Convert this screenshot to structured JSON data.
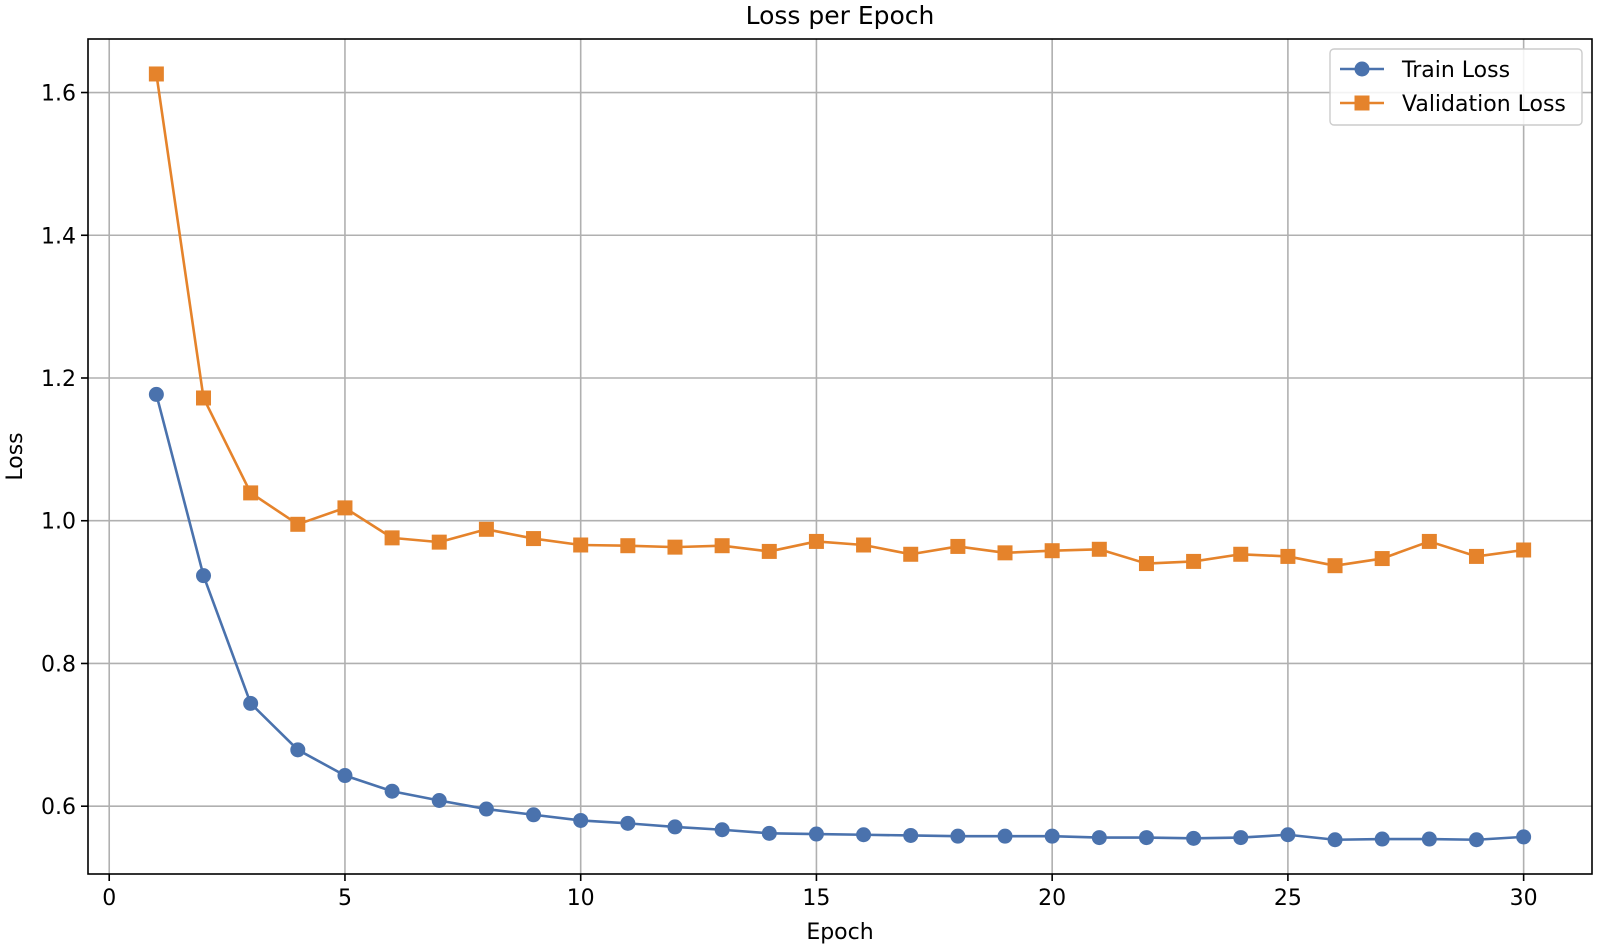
{
  "chart_data": {
    "type": "line",
    "title": "Loss per Epoch",
    "xlabel": "Epoch",
    "ylabel": "Loss",
    "xlim": [
      -0.45,
      31.45
    ],
    "ylim": [
      0.505,
      1.675
    ],
    "xticks": [
      0,
      5,
      10,
      15,
      20,
      25,
      30
    ],
    "yticks": [
      0.6,
      0.8,
      1.0,
      1.2,
      1.4,
      1.6
    ],
    "ytick_labels": [
      "0.6",
      "0.8",
      "1.0",
      "1.2",
      "1.4",
      "1.6"
    ],
    "grid": true,
    "legend_position": "top-right",
    "x": [
      1,
      2,
      3,
      4,
      5,
      6,
      7,
      8,
      9,
      10,
      11,
      12,
      13,
      14,
      15,
      16,
      17,
      18,
      19,
      20,
      21,
      22,
      23,
      24,
      25,
      26,
      27,
      28,
      29,
      30
    ],
    "series": [
      {
        "name": "Train Loss",
        "color": "#4a72ad",
        "marker": "circle",
        "values": [
          1.177,
          0.923,
          0.744,
          0.679,
          0.643,
          0.621,
          0.608,
          0.596,
          0.588,
          0.58,
          0.576,
          0.571,
          0.567,
          0.562,
          0.561,
          0.56,
          0.559,
          0.558,
          0.558,
          0.558,
          0.556,
          0.556,
          0.555,
          0.556,
          0.56,
          0.553,
          0.554,
          0.554,
          0.553,
          0.557
        ]
      },
      {
        "name": "Validation Loss",
        "color": "#e5832b",
        "marker": "square",
        "values": [
          1.626,
          1.172,
          1.039,
          0.995,
          1.018,
          0.976,
          0.97,
          0.988,
          0.975,
          0.966,
          0.965,
          0.963,
          0.965,
          0.957,
          0.971,
          0.966,
          0.953,
          0.964,
          0.955,
          0.958,
          0.96,
          0.94,
          0.943,
          0.953,
          0.95,
          0.937,
          0.947,
          0.971,
          0.95,
          0.959
        ]
      }
    ]
  }
}
